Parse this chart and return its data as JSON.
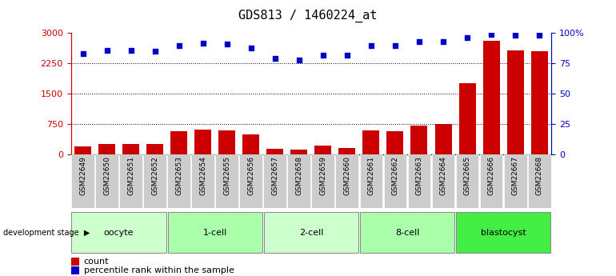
{
  "title": "GDS813 / 1460224_at",
  "samples": [
    "GSM22649",
    "GSM22650",
    "GSM22651",
    "GSM22652",
    "GSM22653",
    "GSM22654",
    "GSM22655",
    "GSM22656",
    "GSM22657",
    "GSM22658",
    "GSM22659",
    "GSM22660",
    "GSM22661",
    "GSM22662",
    "GSM22663",
    "GSM22664",
    "GSM22665",
    "GSM22666",
    "GSM22667",
    "GSM22668"
  ],
  "counts": [
    200,
    260,
    255,
    255,
    570,
    620,
    590,
    490,
    135,
    130,
    225,
    165,
    590,
    580,
    720,
    760,
    1760,
    2820,
    2580,
    2560
  ],
  "percentiles": [
    83,
    86,
    86,
    85,
    90,
    92,
    91,
    88,
    79,
    78,
    82,
    82,
    90,
    90,
    93,
    93,
    96,
    99,
    98,
    98
  ],
  "groups": [
    {
      "label": "oocyte",
      "start": 0,
      "end": 3,
      "color": "#ccffcc"
    },
    {
      "label": "1-cell",
      "start": 4,
      "end": 7,
      "color": "#aaffaa"
    },
    {
      "label": "2-cell",
      "start": 8,
      "end": 11,
      "color": "#ccffcc"
    },
    {
      "label": "8-cell",
      "start": 12,
      "end": 15,
      "color": "#aaffaa"
    },
    {
      "label": "blastocyst",
      "start": 16,
      "end": 19,
      "color": "#44ee44"
    }
  ],
  "bar_color": "#cc0000",
  "dot_color": "#0000cc",
  "left_ylim": [
    0,
    3000
  ],
  "right_ylim": [
    0,
    100
  ],
  "left_yticks": [
    0,
    750,
    1500,
    2250,
    3000
  ],
  "right_yticks": [
    0,
    25,
    50,
    75,
    100
  ],
  "right_yticklabels": [
    "0",
    "25",
    "50",
    "75",
    "100%"
  ],
  "grid_values": [
    750,
    1500,
    2250
  ],
  "title_fontsize": 11,
  "axis_label_color_left": "#cc0000",
  "axis_label_color_right": "#0000cc",
  "sample_bg_color": "#cccccc",
  "legend_square_size": 8
}
